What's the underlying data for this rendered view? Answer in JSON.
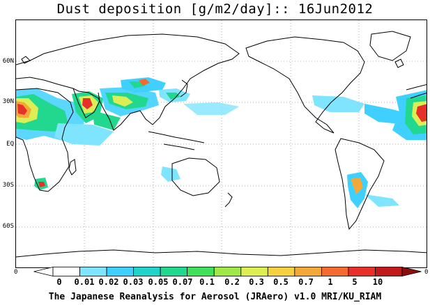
{
  "title": "Dust deposition [g/m2/day]:: 16Jun2012",
  "credit": "The Japanese Reanalysis for Aerosol (JRAero) v1.0 MRI/KU_RIAM",
  "lat_labels": [
    "60N",
    "30N",
    "EQ",
    "30S",
    "60S"
  ],
  "edge_left": "0",
  "edge_right": "0",
  "colorbar": {
    "ticks": [
      "0",
      "0.01",
      "0.02",
      "0.03",
      "0.05",
      "0.07",
      "0.1",
      "0.2",
      "0.3",
      "0.5",
      "0.7",
      "1",
      "5",
      "10"
    ],
    "colors": [
      "#ffffff",
      "#ffffff",
      "#7fe5ff",
      "#3fd0ff",
      "#21d3c8",
      "#22d88f",
      "#3fe05a",
      "#9ee84a",
      "#ddee55",
      "#f5d040",
      "#f5a83a",
      "#f46a30",
      "#e8302a",
      "#c21a1a",
      "#8c0f0f"
    ]
  }
}
